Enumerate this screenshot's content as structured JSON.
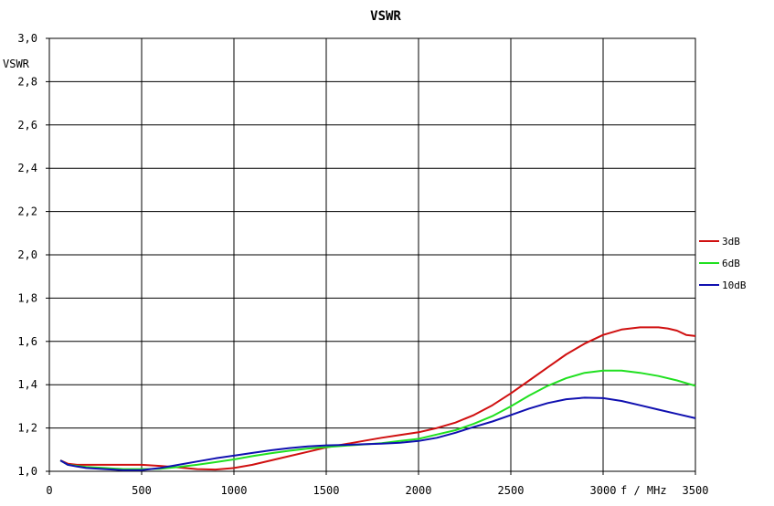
{
  "chart_data": {
    "type": "line",
    "title": "VSWR",
    "ylabel": "VSWR",
    "xlabel": "f / MHz",
    "xlim": [
      0,
      3500
    ],
    "ylim": [
      1.0,
      3.0
    ],
    "x_ticks": [
      0,
      500,
      1000,
      1500,
      2000,
      2500,
      3000,
      3500
    ],
    "x_tick_labels": [
      "0",
      "500",
      "1000",
      "1500",
      "2000",
      "2500",
      "3000",
      "3500"
    ],
    "y_ticks": [
      1.0,
      1.2,
      1.4,
      1.6,
      1.8,
      2.0,
      2.2,
      2.4,
      2.6,
      2.8,
      3.0
    ],
    "y_tick_labels": [
      "1,0",
      "1,2",
      "1,4",
      "1,6",
      "1,8",
      "2,0",
      "2,2",
      "2,4",
      "2,6",
      "2,8",
      "3,0"
    ],
    "grid": true,
    "legend_position": "right",
    "series": [
      {
        "name": "3dB",
        "color": "#d01010",
        "x": [
          60,
          100,
          150,
          200,
          300,
          400,
          500,
          600,
          700,
          800,
          900,
          1000,
          1100,
          1200,
          1300,
          1400,
          1500,
          1600,
          1700,
          1800,
          1900,
          2000,
          2100,
          2200,
          2300,
          2400,
          2500,
          2600,
          2700,
          2800,
          2900,
          3000,
          3100,
          3200,
          3300,
          3350,
          3400,
          3450,
          3500
        ],
        "y": [
          1.05,
          1.035,
          1.03,
          1.03,
          1.03,
          1.03,
          1.03,
          1.025,
          1.018,
          1.01,
          1.008,
          1.015,
          1.03,
          1.05,
          1.07,
          1.09,
          1.11,
          1.125,
          1.14,
          1.155,
          1.168,
          1.18,
          1.2,
          1.225,
          1.26,
          1.305,
          1.36,
          1.42,
          1.48,
          1.54,
          1.59,
          1.63,
          1.655,
          1.665,
          1.665,
          1.66,
          1.65,
          1.63,
          1.625
        ]
      },
      {
        "name": "6dB",
        "color": "#20e020",
        "x": [
          60,
          100,
          150,
          200,
          300,
          400,
          500,
          600,
          700,
          800,
          900,
          1000,
          1100,
          1200,
          1300,
          1400,
          1500,
          1600,
          1700,
          1800,
          1900,
          2000,
          2100,
          2200,
          2300,
          2400,
          2500,
          2600,
          2700,
          2800,
          2900,
          3000,
          3100,
          3200,
          3300,
          3400,
          3500
        ],
        "y": [
          1.05,
          1.03,
          1.025,
          1.02,
          1.015,
          1.01,
          1.01,
          1.012,
          1.02,
          1.03,
          1.042,
          1.055,
          1.07,
          1.083,
          1.095,
          1.105,
          1.112,
          1.118,
          1.124,
          1.13,
          1.14,
          1.15,
          1.17,
          1.19,
          1.22,
          1.255,
          1.3,
          1.35,
          1.395,
          1.43,
          1.455,
          1.465,
          1.465,
          1.455,
          1.44,
          1.42,
          1.395
        ]
      },
      {
        "name": "10dB",
        "color": "#1010b0",
        "x": [
          60,
          100,
          150,
          200,
          300,
          400,
          500,
          600,
          700,
          800,
          900,
          1000,
          1100,
          1200,
          1300,
          1400,
          1500,
          1600,
          1700,
          1800,
          1900,
          2000,
          2100,
          2200,
          2300,
          2400,
          2500,
          2600,
          2700,
          2800,
          2900,
          3000,
          3100,
          3200,
          3300,
          3400,
          3500
        ],
        "y": [
          1.05,
          1.03,
          1.022,
          1.015,
          1.01,
          1.005,
          1.005,
          1.015,
          1.03,
          1.045,
          1.06,
          1.072,
          1.085,
          1.097,
          1.107,
          1.115,
          1.12,
          1.122,
          1.125,
          1.128,
          1.132,
          1.14,
          1.155,
          1.178,
          1.205,
          1.23,
          1.26,
          1.29,
          1.315,
          1.333,
          1.34,
          1.338,
          1.325,
          1.305,
          1.285,
          1.265,
          1.245
        ]
      }
    ]
  }
}
